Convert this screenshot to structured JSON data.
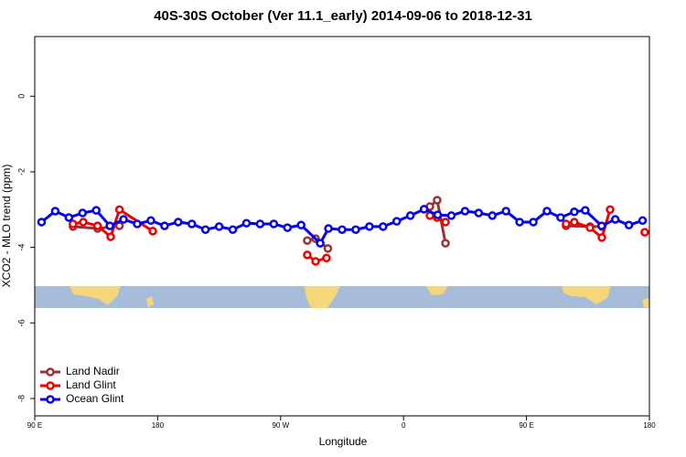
{
  "chart_data": {
    "type": "line",
    "title": "40S-30S October (Ver 11.1_early)   2014-09-06 to 2018-12-31",
    "x_label": "Longitude",
    "y_label": "XCO2 - MLO trend (ppm)",
    "xlim": [
      90,
      540
    ],
    "xticks": [
      {
        "value": 90,
        "label": "90 E"
      },
      {
        "value": 180,
        "label": "180"
      },
      {
        "value": 270,
        "label": "90 W"
      },
      {
        "value": 360,
        "label": "0"
      },
      {
        "value": 450,
        "label": "90 E"
      },
      {
        "value": 540,
        "label": "180"
      }
    ],
    "ylim": [
      -8.46,
      1.58
    ],
    "yticks": [
      0,
      -2,
      -4,
      -6,
      -8
    ],
    "legend": "bottom-left",
    "series": [
      {
        "name": "Land Nadir",
        "color": "#993333",
        "x": [
          118,
          136,
          152,
          null,
          289.5,
          295.6,
          304.6,
          null,
          379.3,
          384.6,
          390.7,
          null,
          479,
          496.5,
          505.2
        ],
        "values": [
          -3.45,
          -3.5,
          -3.43,
          null,
          -3.82,
          -3.77,
          -4.03,
          null,
          -2.92,
          -2.75,
          -3.89,
          null,
          -3.43,
          -3.45,
          -3.45
        ]
      },
      {
        "name": "Land Glint",
        "color": "#ee0000",
        "x": [
          118,
          125.5,
          136,
          145.6,
          152,
          176.4,
          null,
          289.5,
          295.6,
          303.6,
          null,
          379.3,
          384.6,
          390.7,
          null,
          479,
          485,
          496.5,
          505.2,
          511.2,
          null,
          536.6
        ],
        "values": [
          -3.38,
          -3.33,
          -3.43,
          -3.72,
          -3.0,
          -3.57,
          null,
          -4.2,
          -4.37,
          -4.28,
          null,
          -3.16,
          -3.21,
          -3.33,
          null,
          -3.38,
          -3.33,
          -3.48,
          -3.74,
          -3.0,
          null,
          -3.6
        ]
      },
      {
        "name": "Ocean Glint",
        "color": "#0000ee",
        "x": [
          95,
          105,
          115,
          125,
          135,
          145,
          155,
          165,
          175,
          185,
          195,
          205,
          215,
          225,
          235,
          245,
          255,
          265,
          275,
          285,
          299,
          305,
          315,
          325,
          335,
          345,
          355,
          365,
          375,
          385,
          395,
          405,
          415,
          425,
          435,
          445,
          455,
          465,
          475,
          485,
          493,
          505,
          515,
          525,
          535
        ],
        "values": [
          -3.33,
          -3.04,
          -3.21,
          -3.09,
          -3.02,
          -3.43,
          -3.26,
          -3.38,
          -3.29,
          -3.43,
          -3.33,
          -3.38,
          -3.53,
          -3.45,
          -3.53,
          -3.36,
          -3.38,
          -3.38,
          -3.48,
          -3.41,
          -3.89,
          -3.5,
          -3.53,
          -3.53,
          -3.45,
          -3.45,
          -3.31,
          -3.16,
          -2.99,
          -3.14,
          -3.16,
          -3.04,
          -3.09,
          -3.16,
          -3.04,
          -3.33,
          -3.33,
          -3.04,
          -3.21,
          -3.06,
          -3.02,
          -3.43,
          -3.26,
          -3.41,
          -3.29
        ]
      }
    ]
  }
}
